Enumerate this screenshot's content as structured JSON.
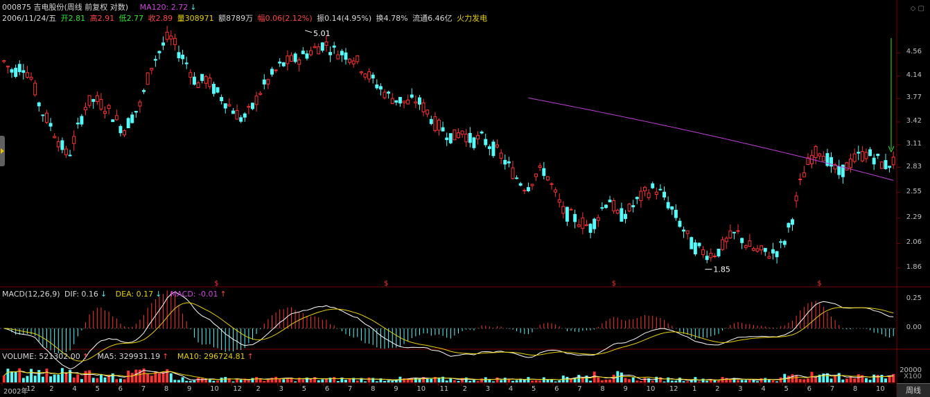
{
  "header": {
    "title": "000875 吉电股份(周线 前复权 对数)",
    "ma_label": "MA120: 2.72",
    "ma_arrow": "↓",
    "date": "2006/11/24/五",
    "open": "开2.81",
    "high": "高2.91",
    "low": "低2.77",
    "close": "收2.89",
    "volume": "量308971",
    "amount": "额8789万",
    "change": "幅0.06(2.12%)",
    "amplitude": "振0.14(4.95%)",
    "turnover": "换4.78%",
    "float_cap": "流通6.46亿",
    "sector": "火力发电"
  },
  "macd_header": {
    "name": "MACD(12,26,9)",
    "dif": "DIF: 0.16",
    "dif_arrow": "↓",
    "dea": "DEA: 0.17",
    "dea_arrow": "↓",
    "macd": "MACD: -0.01",
    "macd_arrow": "↑"
  },
  "volume_header": {
    "vol": "VOLUME: 521302.00",
    "vol_arrow": "↑",
    "ma5": "MA5: 329931.19",
    "ma5_arrow": "↑",
    "ma10": "MA10: 296724.81",
    "ma10_arrow": "↑"
  },
  "price_ticks": [
    "4.56",
    "4.14",
    "3.77",
    "3.42",
    "3.11",
    "2.83",
    "2.55",
    "2.29",
    "2.06",
    "1.86"
  ],
  "macd_ticks": [
    "0.25",
    "0.00"
  ],
  "volume_ticks": [
    "20000"
  ],
  "volume_unit": "X100",
  "x_labels": [
    "2002年",
    "12",
    "2",
    "4",
    "5",
    "6",
    "7",
    "8",
    "9",
    "10",
    "12",
    "2",
    "3",
    "5",
    "6",
    "7",
    "8",
    "9",
    "10",
    "11",
    "2",
    "3",
    "4",
    "5",
    "6",
    "7",
    "8",
    "9",
    "10",
    "12",
    "1",
    "2",
    "3",
    "4",
    "5",
    "6",
    "7",
    "8",
    "10"
  ],
  "annotations": {
    "high": "5.01",
    "low": "1.85",
    "marker": "$"
  },
  "period_button": "周线",
  "window_controls": "◇ ▢",
  "chart_data": {
    "type": "candlestick",
    "title": "000875 吉电股份(周线 前复权 对数)",
    "y_scale": "log",
    "ylim": [
      1.78,
      4.95
    ],
    "ma120_range": [
      3.78,
      2.68
    ],
    "macd_range": [
      -0.22,
      0.32
    ],
    "price_path": [
      4.4,
      4.2,
      4.35,
      4.1,
      3.6,
      3.4,
      3.15,
      2.95,
      3.3,
      3.7,
      3.75,
      3.65,
      3.5,
      3.3,
      3.5,
      3.7,
      4.3,
      4.6,
      4.9,
      4.6,
      4.35,
      4.0,
      4.1,
      3.9,
      3.75,
      3.6,
      3.45,
      3.6,
      3.9,
      4.1,
      4.3,
      4.4,
      4.45,
      4.55,
      4.65,
      4.75,
      4.6,
      4.55,
      4.5,
      4.3,
      4.1,
      3.95,
      3.8,
      3.75,
      3.7,
      3.75,
      3.6,
      3.4,
      3.3,
      3.2,
      3.3,
      3.15,
      3.2,
      3.1,
      3.0,
      2.85,
      2.7,
      2.6,
      2.75,
      2.8,
      2.55,
      2.35,
      2.3,
      2.25,
      2.2,
      2.35,
      2.5,
      2.3,
      2.35,
      2.45,
      2.55,
      2.6,
      2.5,
      2.35,
      2.2,
      2.05,
      2.0,
      1.97,
      2.0,
      2.1,
      2.15,
      2.05,
      2.0,
      1.98,
      1.98,
      2.05,
      2.3,
      2.7,
      2.95,
      3.05,
      2.9,
      2.75,
      2.85,
      2.95,
      3.0,
      2.95,
      2.85,
      2.9
    ],
    "annotated_high": 5.01,
    "annotated_low": 1.85
  }
}
